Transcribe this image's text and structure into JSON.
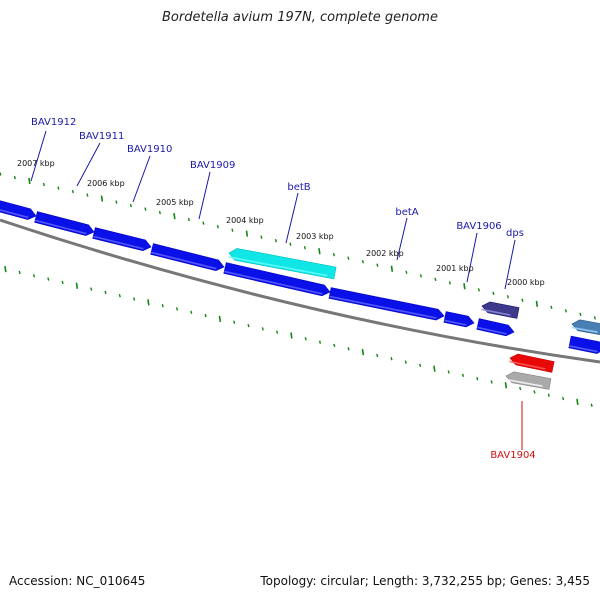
{
  "title": "Bordetella avium 197N, complete genome",
  "footer": {
    "accession": "Accession: NC_010645",
    "summary": "Topology: circular; Length: 3,732,255 bp; Genes: 3,455"
  },
  "colors": {
    "forward_gene": "#0a10e8",
    "reverse_gene": "#e80808",
    "betB_gene": "#11e6e6",
    "dps_gene": "#3d3a8c",
    "pseudo_gene": "#aaaaaa",
    "offscreen_gene": "#4a7fb5",
    "tick_mark": "#118811",
    "backbone": "#777777",
    "forward_label": "#1a1aa6",
    "reverse_label": "#cc1111"
  },
  "ticks": [
    {
      "label": "2007 kbp"
    },
    {
      "label": "2006 kbp"
    },
    {
      "label": "2005 kbp"
    },
    {
      "label": "2004 kbp"
    },
    {
      "label": "2003 kbp"
    },
    {
      "label": "2002 kbp"
    },
    {
      "label": "2001 kbp"
    },
    {
      "label": "2000 kbp"
    }
  ],
  "genes": [
    {
      "label": "BAV1912",
      "strand": "forward",
      "color": "forward_gene"
    },
    {
      "label": "BAV1911",
      "strand": "forward",
      "color": "forward_gene"
    },
    {
      "label": "BAV1910",
      "strand": "forward",
      "color": "forward_gene"
    },
    {
      "label": "BAV1909",
      "strand": "forward",
      "color": "forward_gene"
    },
    {
      "label": "betB",
      "strand": "forward",
      "color": "betB_gene"
    },
    {
      "label": "betA",
      "strand": "forward",
      "color": "forward_gene"
    },
    {
      "label": "BAV1906",
      "strand": "forward",
      "color": "forward_gene"
    },
    {
      "label": "dps",
      "strand": "forward",
      "color": "dps_gene"
    },
    {
      "label": "BAV1904",
      "strand": "reverse",
      "color": "reverse_gene"
    }
  ]
}
